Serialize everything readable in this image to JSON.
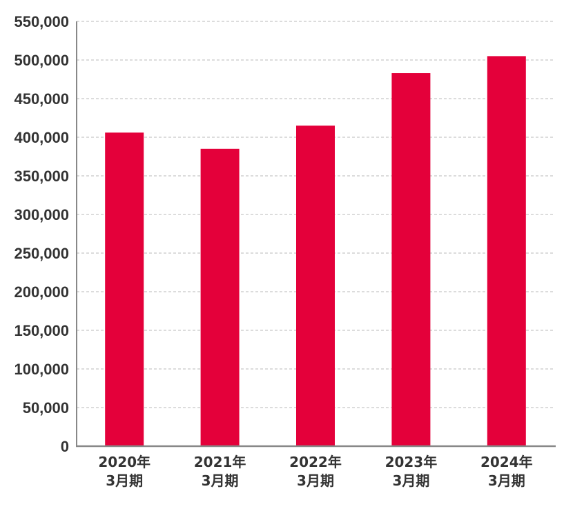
{
  "chart_data": {
    "type": "bar",
    "categories": [
      [
        "2020年",
        "3月期"
      ],
      [
        "2021年",
        "3月期"
      ],
      [
        "2022年",
        "3月期"
      ],
      [
        "2023年",
        "3月期"
      ],
      [
        "2024年",
        "3月期"
      ]
    ],
    "values": [
      406000,
      385000,
      415000,
      483000,
      505000
    ],
    "ylim": [
      0,
      550000
    ],
    "yticks": [
      0,
      50000,
      100000,
      150000,
      200000,
      250000,
      300000,
      350000,
      400000,
      450000,
      500000,
      550000
    ],
    "ytick_labels": [
      "0",
      "50,000",
      "100,000",
      "150,000",
      "200,000",
      "250,000",
      "300,000",
      "350,000",
      "400,000",
      "450,000",
      "500,000",
      "550,000"
    ],
    "grid": true,
    "bar_color": "#e4003a",
    "grid_color": "#c8c8c8",
    "axis_color": "#888888",
    "text_color": "#333333"
  }
}
